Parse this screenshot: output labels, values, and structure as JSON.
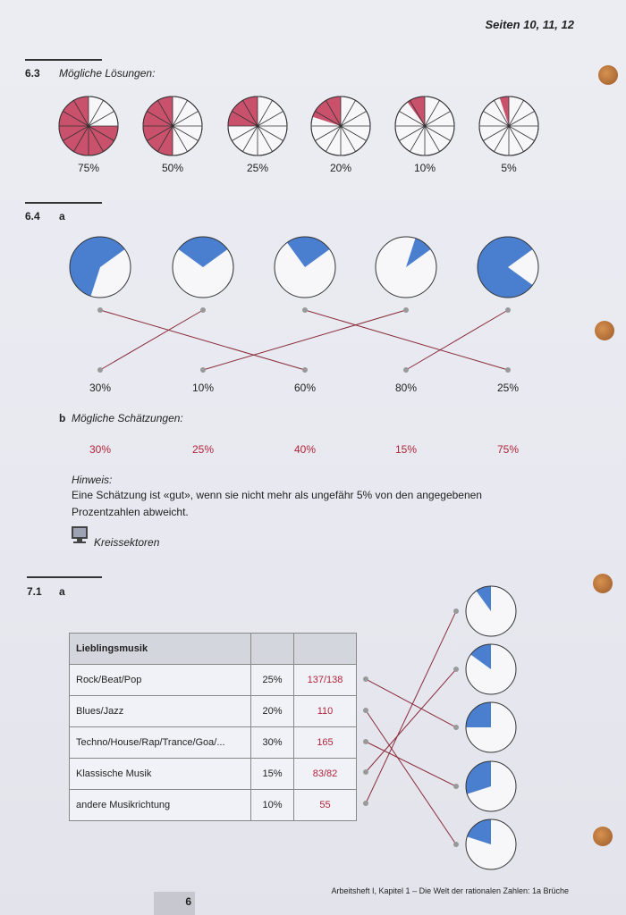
{
  "header": {
    "pages": "Seiten 10, 11, 12"
  },
  "section_6_3": {
    "number": "6.3",
    "label": "Mögliche Lösungen:",
    "pies": [
      {
        "label": "75%",
        "fraction": 0.75
      },
      {
        "label": "50%",
        "fraction": 0.5
      },
      {
        "label": "25%",
        "fraction": 0.25
      },
      {
        "label": "20%",
        "fraction": 0.2
      },
      {
        "label": "10%",
        "fraction": 0.1
      },
      {
        "label": "5%",
        "fraction": 0.05
      }
    ]
  },
  "section_6_4": {
    "number": "6.4",
    "part_a": "a",
    "pies": [
      {
        "fraction": 0.6
      },
      {
        "fraction": 0.3
      },
      {
        "fraction": 0.25
      },
      {
        "fraction": 0.1
      },
      {
        "fraction": 0.8
      }
    ],
    "labels": [
      "30%",
      "10%",
      "60%",
      "80%",
      "25%"
    ],
    "matches": [
      2,
      0,
      4,
      1,
      3
    ],
    "part_b": "b",
    "estimates_label": "Mögliche Schätzungen:",
    "estimates": [
      "30%",
      "25%",
      "40%",
      "15%",
      "75%"
    ],
    "hint_title": "Hinweis:",
    "hint_line1": "Eine Schätzung ist «gut», wenn sie nicht mehr als ungefähr 5% von den angegebenen",
    "hint_line2": "Prozentzahlen abweicht.",
    "computer_link": "Kreissektoren"
  },
  "section_7_1": {
    "number": "7.1",
    "part_a": "a",
    "table_header": "Lieblingsmusik",
    "rows": [
      {
        "genre": "Rock/Beat/Pop",
        "percent": "25%",
        "value": "137/138"
      },
      {
        "genre": "Blues/Jazz",
        "percent": "20%",
        "value": "110"
      },
      {
        "genre": "Techno/House/Rap/Trance/Goa/...",
        "percent": "30%",
        "value": "165"
      },
      {
        "genre": "Klassische Musik",
        "percent": "15%",
        "value": "83/82"
      },
      {
        "genre": "andere Musikrichtung",
        "percent": "10%",
        "value": "55"
      }
    ],
    "pies": [
      {
        "fraction": 0.1
      },
      {
        "fraction": 0.15
      },
      {
        "fraction": 0.25
      },
      {
        "fraction": 0.3
      },
      {
        "fraction": 0.2
      }
    ],
    "matches": [
      2,
      4,
      3,
      1,
      0
    ]
  },
  "footer": {
    "page_number": "6",
    "caption": "Arbeitsheft I, Kapitel 1 – Die Welt der rationalen Zahlen: 1a Brüche"
  },
  "colors": {
    "pink": "#c9516b",
    "blue": "#4a7fd0",
    "line": "#8a2a38",
    "dot": "#999999"
  }
}
